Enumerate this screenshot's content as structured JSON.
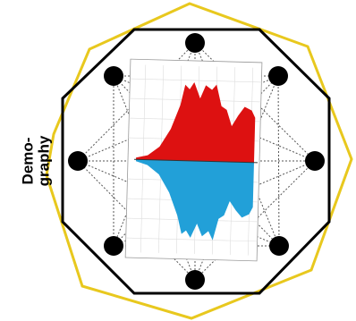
{
  "label": {
    "lines": [
      "Demo-",
      "graphy"
    ]
  }
}
